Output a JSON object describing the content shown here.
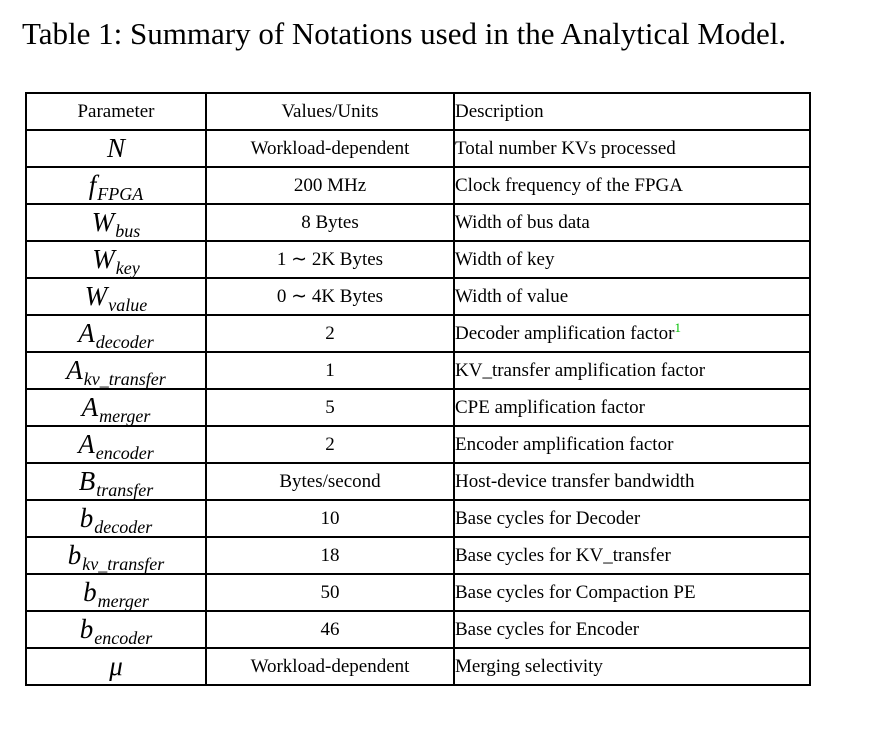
{
  "title": "Table 1: Summary of Notations used in the Analytical Model.",
  "colors": {
    "footnote_green": "#00bf00",
    "border": "#000000",
    "text": "#000000",
    "background": "#ffffff"
  },
  "table": {
    "headers": [
      "Parameter",
      "Values/Units",
      "Description"
    ],
    "rows": [
      {
        "param": "N",
        "sub": "",
        "value": "Workload-dependent",
        "desc": "Total number KVs processed",
        "footnote": ""
      },
      {
        "param": "f",
        "sub": "FPGA",
        "value": "200 MHz",
        "desc": "Clock frequency of the FPGA",
        "footnote": ""
      },
      {
        "param": "W",
        "sub": "bus",
        "value": "8 Bytes",
        "desc": "Width of bus data",
        "footnote": ""
      },
      {
        "param": "W",
        "sub": "key",
        "value": "1 ∼ 2K Bytes",
        "desc": "Width of key",
        "footnote": ""
      },
      {
        "param": "W",
        "sub": "value",
        "value": "0 ∼ 4K Bytes",
        "desc": "Width of value",
        "footnote": ""
      },
      {
        "param": "A",
        "sub": "decoder",
        "value": "2",
        "desc": "Decoder amplification factor",
        "footnote": "1"
      },
      {
        "param": "A",
        "sub": "kv_transfer",
        "value": "1",
        "desc": "KV_transfer amplification factor",
        "footnote": ""
      },
      {
        "param": "A",
        "sub": "merger",
        "value": "5",
        "desc": "CPE amplification factor",
        "footnote": ""
      },
      {
        "param": "A",
        "sub": "encoder",
        "value": "2",
        "desc": "Encoder amplification factor",
        "footnote": ""
      },
      {
        "param": "B",
        "sub": "transfer",
        "value": "Bytes/second",
        "desc": "Host-device transfer bandwidth",
        "footnote": ""
      },
      {
        "param": "b",
        "sub": "decoder",
        "value": "10",
        "desc": "Base cycles for Decoder",
        "footnote": ""
      },
      {
        "param": "b",
        "sub": "kv_transfer",
        "value": "18",
        "desc": "Base cycles for KV_transfer",
        "footnote": ""
      },
      {
        "param": "b",
        "sub": "merger",
        "value": "50",
        "desc": "Base cycles for Compaction PE",
        "footnote": ""
      },
      {
        "param": "b",
        "sub": "encoder",
        "value": "46",
        "desc": "Base cycles for Encoder",
        "footnote": ""
      },
      {
        "param": "μ",
        "sub": "",
        "value": "Workload-dependent",
        "desc": "Merging selectivity",
        "footnote": ""
      }
    ]
  }
}
